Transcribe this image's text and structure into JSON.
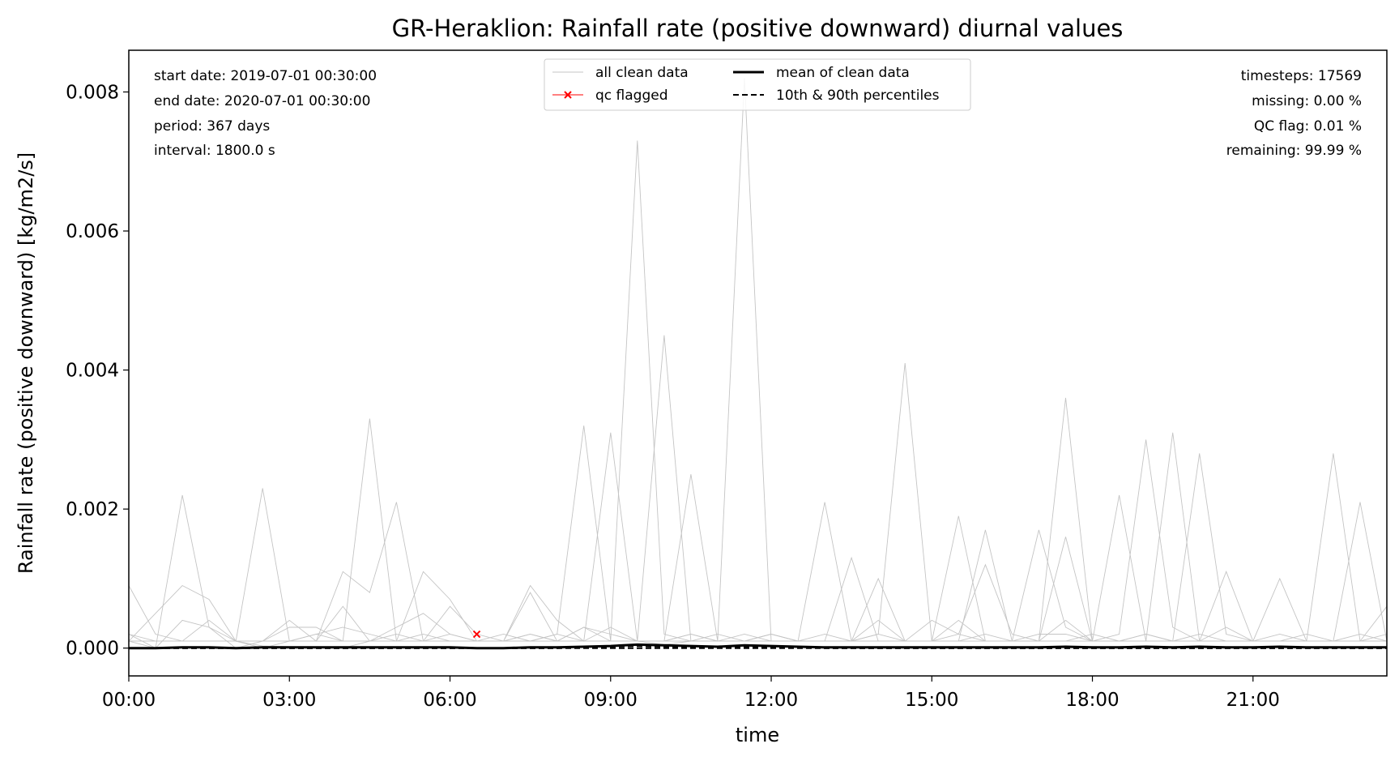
{
  "chart_data": {
    "type": "line",
    "title": "GR-Heraklion: Rainfall rate (positive downward) diurnal values",
    "xlabel": "time",
    "ylabel": "Rainfall rate (positive downward) [kg/m2/s]",
    "xlim_hours": [
      0,
      23.5
    ],
    "ylim": [
      -0.0004,
      0.0086
    ],
    "x_ticks": [
      {
        "hour": 0,
        "label": "00:00"
      },
      {
        "hour": 3,
        "label": "03:00"
      },
      {
        "hour": 6,
        "label": "06:00"
      },
      {
        "hour": 9,
        "label": "09:00"
      },
      {
        "hour": 12,
        "label": "12:00"
      },
      {
        "hour": 15,
        "label": "15:00"
      },
      {
        "hour": 18,
        "label": "18:00"
      },
      {
        "hour": 21,
        "label": "21:00"
      }
    ],
    "y_ticks": [
      {
        "value": 0.0,
        "label": "0.000"
      },
      {
        "value": 0.002,
        "label": "0.002"
      },
      {
        "value": 0.004,
        "label": "0.004"
      },
      {
        "value": 0.006,
        "label": "0.006"
      },
      {
        "value": 0.008,
        "label": "0.008"
      }
    ],
    "grid": false,
    "legend_position": "top-center",
    "legend": [
      {
        "label": "all clean data",
        "style": "thin-gray"
      },
      {
        "label": "qc flagged",
        "style": "red-x"
      },
      {
        "label": "mean of clean data",
        "style": "thick-black"
      },
      {
        "label": "10th & 90th percentiles",
        "style": "dashed-black"
      }
    ],
    "info_left": [
      "start date: 2019-07-01 00:30:00",
      "end date: 2020-07-01 00:30:00",
      "period: 367 days",
      "interval: 1800.0 s"
    ],
    "info_right": [
      "timesteps: 17569",
      "missing: 0.00 %",
      "QC flag: 0.01 %",
      "remaining: 99.99 %"
    ],
    "colors": {
      "clean": "#c4c4c4",
      "mean": "#000000",
      "flag": "#ff0000"
    },
    "peak_days": [
      [
        0.0009,
        0.0002,
        0.0001,
        0.0001,
        0.0001,
        3e-05,
        2e-05,
        1e-05,
        0.0,
        0.0001,
        0.0003,
        0.0005,
        0.0002,
        0.0001,
        0.0001,
        0.0002,
        0.0001,
        0.0003,
        0.0002,
        0.0001,
        5e-05,
        0.0001,
        0.0002,
        0.0001,
        0.0001,
        0.0001,
        0.0002,
        0.0001,
        0.0004,
        0.0001,
        0.0004,
        0.0002,
        0.0012,
        0.0002,
        0.0001,
        0.0004,
        0.0001,
        0.0001,
        0.0002,
        0.0001,
        0.0002,
        0.0001,
        0.0001,
        0.0002,
        0.0001,
        0.0001,
        0.0002,
        0.0001
      ],
      [
        0.0002,
        0.0,
        0.0022,
        0.0003,
        0.0001,
        0.0,
        0.0001,
        0.0002,
        0.0003,
        0.0002,
        0.0001,
        0.0011,
        0.0007,
        0.0001,
        0.0001,
        0.0002,
        0.0001,
        0.0001,
        0.0003,
        0.0001,
        0.0001,
        0.0002,
        0.0001,
        0.0002,
        0.0001,
        0.0001,
        0.0001,
        0.0001,
        0.0002,
        0.0001,
        0.0001,
        0.0004,
        0.0001,
        0.0001,
        0.0002,
        0.0002,
        0.0001,
        0.0002,
        0.003,
        0.0003,
        0.0001,
        0.0001,
        0.0001,
        0.0001,
        0.0002,
        0.0001,
        0.0001,
        0.0002
      ],
      [
        0.0001,
        0.0005,
        0.0009,
        0.0007,
        0.0001,
        0.0023,
        0.0001,
        0.0002,
        0.0001,
        0.0033,
        0.0001,
        0.0002,
        0.0001,
        0.0001,
        0.0002,
        0.0001,
        0.0002,
        0.0001,
        0.0001,
        0.0001,
        0.0001,
        0.0002,
        0.0001,
        0.0001,
        0.0002,
        0.0001,
        0.0001,
        0.0001,
        0.0002,
        0.0041,
        0.0001,
        0.0001,
        0.0002,
        0.0001,
        0.0001,
        0.0001,
        0.0002,
        0.0001,
        0.0002,
        0.0001,
        0.0028,
        0.0002,
        0.0001,
        0.0001,
        0.0001,
        0.0028,
        0.0001,
        0.0001
      ],
      [
        0.0001,
        0.0,
        0.0004,
        0.0003,
        0.0,
        0.0001,
        0.0004,
        0.0001,
        0.0011,
        0.0008,
        0.0021,
        0.0001,
        0.0001,
        0.0001,
        0.0001,
        0.0001,
        0.0002,
        0.0032,
        0.0001,
        0.0073,
        0.0002,
        0.0001,
        0.0001,
        0.0001,
        0.0002,
        0.0001,
        0.0021,
        0.0001,
        0.0001,
        0.0001,
        0.0001,
        0.0002,
        0.0001,
        0.0001,
        0.0017,
        0.0003,
        0.0001,
        0.0001,
        0.0001,
        0.0031,
        0.0001,
        0.0003,
        0.0001,
        0.001,
        0.0001,
        0.0001,
        0.0001,
        0.0001
      ],
      [
        0.0002,
        0.0001,
        0.0001,
        0.0004,
        0.0001,
        0.0001,
        0.0003,
        0.0003,
        0.0001,
        0.0001,
        0.0001,
        0.0001,
        0.0002,
        0.0001,
        0.0001,
        0.0009,
        0.0004,
        0.0001,
        0.0031,
        0.0001,
        0.0045,
        0.0001,
        0.0001,
        0.0001,
        0.0002,
        0.0001,
        0.0001,
        0.0001,
        0.0001,
        0.0001,
        0.0001,
        0.0019,
        0.0001,
        0.0001,
        0.0001,
        0.0036,
        0.0001,
        0.0001,
        0.0001,
        0.0001,
        0.0001,
        0.0011,
        0.0001,
        0.0001,
        0.0001,
        0.0001,
        0.0021,
        0.0001
      ],
      [
        0.0001,
        0.0001,
        0.0001,
        0.0001,
        0.0001,
        0.0001,
        0.0001,
        0.0001,
        0.0006,
        0.0001,
        0.0002,
        0.0001,
        0.0006,
        0.0002,
        0.0001,
        0.0001,
        0.0001,
        0.0003,
        0.0001,
        0.0001,
        0.0001,
        0.0025,
        0.0001,
        0.0082,
        0.0001,
        0.0001,
        0.0001,
        0.0013,
        0.0001,
        0.0001,
        0.0001,
        0.0001,
        0.0001,
        0.0001,
        0.0001,
        0.0016,
        0.0001,
        0.0022,
        0.0001,
        0.0001,
        0.0001,
        0.0001,
        0.0001,
        0.0001,
        0.0001,
        0.0001,
        0.0001,
        0.0006
      ],
      [
        0.0001,
        0.0001,
        0.0001,
        0.0001,
        0.0001,
        0.0001,
        0.0001,
        0.0001,
        0.0001,
        0.0001,
        0.0001,
        0.0001,
        0.0001,
        0.0001,
        0.0001,
        0.0008,
        0.0001,
        0.0001,
        0.0001,
        0.0001,
        0.0001,
        0.0001,
        0.0001,
        0.0001,
        0.0001,
        0.0001,
        0.0001,
        0.0001,
        0.001,
        0.0001,
        0.0001,
        0.0001,
        0.0017,
        0.0001,
        0.0001,
        0.0001,
        0.0001,
        0.0001,
        0.0001,
        0.0001,
        0.0001,
        0.0001,
        0.0001,
        0.0001,
        0.0001,
        0.0001,
        0.0001,
        0.0001
      ]
    ],
    "mean": [
      0.0,
      0.0,
      1e-05,
      1e-05,
      0.0,
      1e-05,
      1e-05,
      1e-05,
      1e-05,
      1e-05,
      1e-05,
      1e-05,
      1e-05,
      0.0,
      0.0,
      1e-05,
      1e-05,
      2e-05,
      3e-05,
      5e-05,
      4e-05,
      3e-05,
      2e-05,
      4e-05,
      3e-05,
      2e-05,
      1e-05,
      1e-05,
      1e-05,
      1e-05,
      1e-05,
      1e-05,
      1e-05,
      1e-05,
      1e-05,
      2e-05,
      1e-05,
      1e-05,
      2e-05,
      1e-05,
      2e-05,
      1e-05,
      1e-05,
      2e-05,
      1e-05,
      1e-05,
      1e-05,
      1e-05
    ],
    "p90": [
      0.0,
      0.0,
      0.0,
      0.0,
      0.0,
      0.0,
      0.0,
      0.0,
      0.0,
      0.0,
      0.0,
      0.0,
      0.0,
      0.0,
      0.0,
      0.0,
      0.0,
      1e-05,
      2e-05,
      3e-05,
      2e-05,
      2e-05,
      1e-05,
      2e-05,
      1e-05,
      1e-05,
      0.0,
      0.0,
      0.0,
      0.0,
      0.0,
      0.0,
      0.0,
      0.0,
      0.0,
      0.0,
      0.0,
      0.0,
      0.0,
      0.0,
      0.0,
      0.0,
      0.0,
      0.0,
      0.0,
      0.0,
      0.0,
      0.0
    ],
    "qc_flagged": [
      {
        "hour": 6.5,
        "value": 0.0002
      }
    ]
  }
}
